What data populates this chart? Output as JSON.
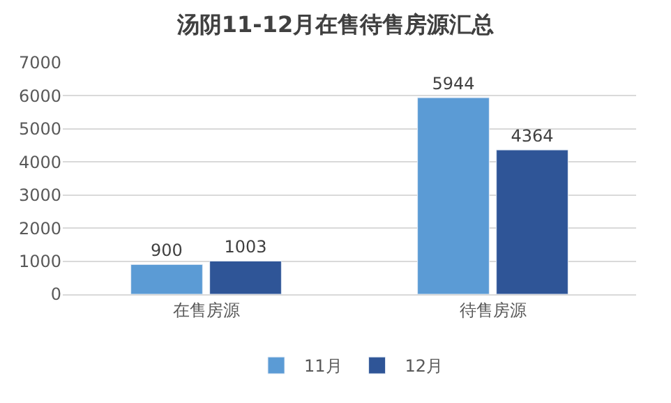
{
  "chart_data": {
    "type": "bar",
    "title": "汤阴11-12月在售待售房源汇总",
    "categories": [
      "在售房源",
      "待售房源"
    ],
    "series": [
      {
        "name": "11月",
        "color": "#5b9bd5",
        "values": [
          900,
          5944
        ]
      },
      {
        "name": "12月",
        "color": "#2f5597",
        "values": [
          1003,
          4364
        ]
      }
    ],
    "ylim": [
      0,
      7000
    ],
    "yticks": [
      0,
      1000,
      2000,
      3000,
      4000,
      5000,
      6000,
      7000
    ],
    "grid": "y",
    "legend": "bottom",
    "data_labels": true
  }
}
